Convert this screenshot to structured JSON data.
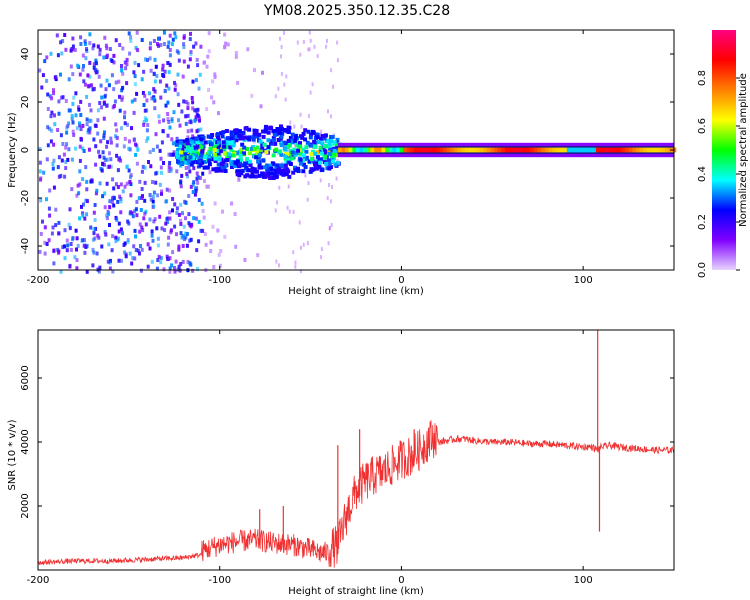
{
  "chart_data": [
    {
      "type": "heatmap",
      "title": "YM08.2025.350.12.35.C28",
      "xlabel": "Height of straight line (km)",
      "ylabel": "Frequency (Hz)",
      "xlim": [
        -200,
        150
      ],
      "ylim": [
        -50,
        50
      ],
      "xticks": [
        -200,
        -100,
        0,
        100
      ],
      "yticks": [
        -40,
        -20,
        0,
        20,
        40
      ],
      "colorbar": {
        "label": "Normalized spectral amplitude",
        "range": [
          0,
          1
        ],
        "ticks": [
          "0.0",
          "0.2",
          "0.4",
          "0.6",
          "0.8"
        ],
        "colors": [
          "#e8d4ff",
          "#8000ff",
          "#0000ff",
          "#00ffff",
          "#00ff00",
          "#ffff00",
          "#ff8000",
          "#ff0000",
          "#ff0080"
        ]
      },
      "regions": [
        {
          "description": "scattered noise",
          "x": [
            -200,
            -110
          ],
          "freq_band": [
            -50,
            50
          ],
          "amplitude": 0.15
        },
        {
          "description": "turbulent signal",
          "x": [
            -120,
            -35
          ],
          "freq_band": [
            -10,
            10
          ],
          "amplitude": 0.4
        },
        {
          "description": "stable carrier line",
          "x": [
            -35,
            150
          ],
          "freq_band": [
            -2,
            2
          ],
          "amplitude": 0.9
        }
      ]
    },
    {
      "type": "line",
      "xlabel": "Height of straight line (km)",
      "ylabel": "SNR (10 * v/v)",
      "xlim": [
        -200,
        150
      ],
      "ylim": [
        0,
        7500
      ],
      "xticks": [
        -200,
        -100,
        0,
        100
      ],
      "yticks": [
        2000,
        4000,
        6000
      ],
      "color": "#f03030",
      "x": [
        -200,
        -180,
        -160,
        -140,
        -120,
        -110,
        -100,
        -90,
        -80,
        -70,
        -60,
        -50,
        -45,
        -40,
        -35,
        -30,
        -25,
        -20,
        -15,
        -10,
        -5,
        0,
        5,
        10,
        15,
        20,
        25,
        30,
        35,
        40,
        50,
        60,
        70,
        80,
        90,
        100,
        105,
        108,
        110,
        115,
        120,
        130,
        140,
        150
      ],
      "y": [
        200,
        250,
        250,
        300,
        350,
        450,
        650,
        750,
        800,
        700,
        650,
        500,
        400,
        400,
        500,
        1500,
        2200,
        2500,
        2700,
        2800,
        3000,
        3200,
        3300,
        3500,
        3800,
        3950,
        4000,
        4050,
        4050,
        4000,
        3950,
        3950,
        3900,
        3900,
        3850,
        3800,
        3800,
        3700,
        3800,
        3850,
        3800,
        3750,
        3700,
        3700
      ],
      "spikes": [
        {
          "x": 108,
          "y": 7500
        },
        {
          "x": 109,
          "y": 1200
        },
        {
          "x": -23,
          "y": 4400
        },
        {
          "x": -35,
          "y": 3900
        },
        {
          "x": 15,
          "y": 4450
        },
        {
          "x": 7,
          "y": 4400
        },
        {
          "x": -78,
          "y": 1900
        },
        {
          "x": -65,
          "y": 2000
        }
      ]
    }
  ]
}
